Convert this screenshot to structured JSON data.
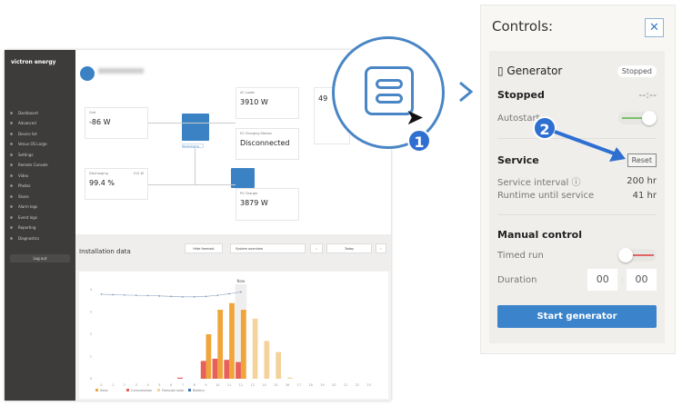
{
  "sidebar": {
    "brand": "victron energy",
    "items": [
      "Dashboard",
      "Advanced",
      "Device list",
      "Venus OS Large",
      "Settings",
      "Remote Console",
      "Video",
      "Photos",
      "Share",
      "Alarm logs",
      "Event logs",
      "Reporting",
      "Diagnostics"
    ],
    "logout": "Log out"
  },
  "dashboard": {
    "grid": {
      "label": "Grid",
      "value": "-86 W"
    },
    "ac_loads": {
      "label": "AC Loads",
      "value": "3910 W"
    },
    "ev": {
      "label": "EV Charging Station",
      "value": "Disconnected"
    },
    "battery": {
      "label": "Discharging",
      "value": "99.4 %",
      "power": "512 W"
    },
    "pv": {
      "label": "PV Charger",
      "value": "3879 W"
    },
    "weather": {
      "value": "49"
    },
    "inverter_state": "Discharging"
  },
  "installation": {
    "title": "Installation data",
    "hide_forecast": "Hide forecast",
    "view": "System overview",
    "date": "Today",
    "now_label": "Now"
  },
  "chart_data": {
    "type": "bar",
    "categories": [
      "0",
      "1",
      "2",
      "3",
      "4",
      "5",
      "6",
      "7",
      "8",
      "9",
      "10",
      "11",
      "12",
      "13",
      "14",
      "15",
      "16",
      "17",
      "18",
      "19",
      "20",
      "21",
      "22",
      "23"
    ],
    "series": [
      {
        "name": "Solar",
        "values": [
          0,
          0,
          0,
          0,
          0,
          0,
          0,
          0,
          0,
          2.0,
          3.1,
          3.4,
          3.1,
          0,
          0,
          0,
          0,
          0,
          0,
          0,
          0,
          0,
          0,
          0
        ]
      },
      {
        "name": "Consumption",
        "values": [
          0,
          0,
          0,
          0,
          0,
          0,
          0,
          0.05,
          0,
          0.8,
          0.9,
          0.85,
          0.75,
          0,
          0,
          0,
          0,
          0,
          0,
          0,
          0,
          0,
          0,
          0
        ]
      },
      {
        "name": "Forecast solar",
        "values": [
          0,
          0,
          0,
          0,
          0,
          0,
          0,
          0,
          0,
          0,
          0,
          0,
          0,
          2.7,
          1.7,
          1.2,
          0.05,
          0,
          0,
          0,
          0,
          0,
          0,
          0
        ]
      },
      {
        "name": "Battery",
        "values": [
          3.8,
          3.78,
          3.76,
          3.75,
          3.74,
          3.72,
          3.7,
          3.68,
          3.68,
          3.7,
          3.75,
          3.82,
          3.9,
          null,
          null,
          null,
          null,
          null,
          null,
          null,
          null,
          null,
          null,
          null
        ]
      }
    ],
    "ylim": [
      0,
      4
    ],
    "grid": false,
    "legend": "bottom-left"
  },
  "magnifier": {
    "step": "1"
  },
  "controls": {
    "title": "Controls:",
    "close": "✕",
    "generator": {
      "title": "Generator",
      "badge": "Stopped",
      "state": "Stopped",
      "time": "--:--",
      "autostart_label": "Autostart",
      "autostart": true
    },
    "step2": "2",
    "service": {
      "title": "Service",
      "reset": "Reset",
      "interval_label": "Service interval",
      "interval": "200 hr",
      "runtime_label": "Runtime until service",
      "runtime": "41 hr"
    },
    "manual": {
      "title": "Manual control",
      "timed_run_label": "Timed run",
      "timed_run": false,
      "duration_label": "Duration",
      "hours": "00",
      "minutes": "00",
      "start": "Start generator"
    },
    "colors": {
      "accent": "#3b84cc",
      "toggle_on": "#7cbf6a",
      "toggle_off": "#e06666"
    }
  }
}
